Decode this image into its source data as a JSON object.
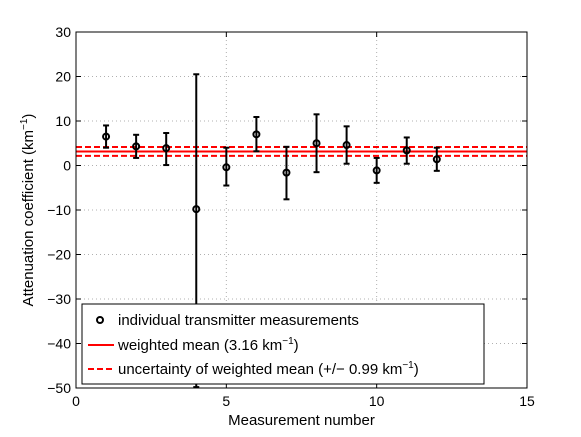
{
  "chart_data": {
    "type": "scatter",
    "title": "",
    "xlabel": "Measurement number",
    "ylabel": "Attenuation coefficient (km",
    "ylabel_sup": "−1",
    "ylabel_end": ")",
    "xlim": [
      0,
      15
    ],
    "ylim": [
      -50,
      30
    ],
    "xticks": [
      0,
      5,
      10,
      15
    ],
    "yticks": [
      -50,
      -40,
      -30,
      -20,
      -10,
      0,
      10,
      20,
      30
    ],
    "xtick_labels": [
      "0",
      "5",
      "10",
      "15"
    ],
    "ytick_labels": [
      "−50",
      "−40",
      "−30",
      "−20",
      "−10",
      "0",
      "10",
      "20",
      "30"
    ],
    "grid": true,
    "legend_position": "bottom-left",
    "series": [
      {
        "name": "individual transmitter measurements",
        "type": "errorbar",
        "color": "#000000",
        "x": [
          1,
          2,
          3,
          4,
          5,
          6,
          7,
          8,
          9,
          10,
          11,
          12
        ],
        "y": [
          6.5,
          4.3,
          3.9,
          -9.8,
          -0.4,
          7.0,
          -1.6,
          5.0,
          4.6,
          -1.1,
          3.4,
          1.4
        ],
        "err_low": [
          2.5,
          2.6,
          3.8,
          40.0,
          4.1,
          3.8,
          6.0,
          6.5,
          4.2,
          2.8,
          3.0,
          2.6
        ],
        "err_high": [
          2.5,
          2.6,
          3.4,
          30.3,
          4.4,
          3.9,
          5.8,
          6.5,
          4.2,
          2.8,
          2.9,
          2.6
        ]
      },
      {
        "name": "weighted mean (3.16 km",
        "name_sup": "−1",
        "name_end": ")",
        "type": "hline",
        "y": 3.16,
        "style": "solid",
        "color": "#ff0000"
      },
      {
        "name": "uncertainty of weighted mean (+/− 0.99 km",
        "name_sup": "−1",
        "name_end": ")",
        "type": "hline",
        "y": [
          4.15,
          2.17
        ],
        "style": "dashed",
        "color": "#ff0000"
      }
    ]
  }
}
